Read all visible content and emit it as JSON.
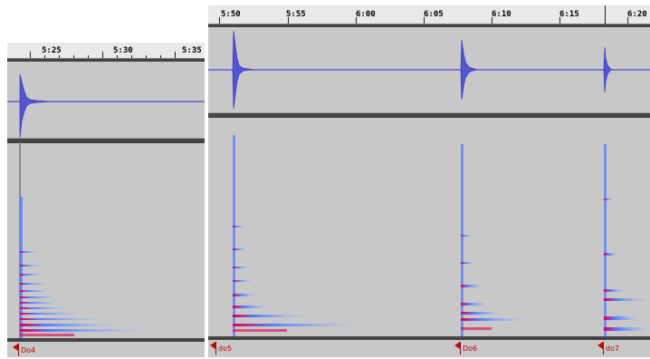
{
  "left_panel": {
    "ruler_labels": [
      "5:25",
      "5:30",
      "5:35"
    ],
    "marker_label": "Do4"
  },
  "right_panel": {
    "ruler_labels": [
      "5:50",
      "5:55",
      "6:00",
      "6:05",
      "6:10",
      "6:15",
      "6:20"
    ],
    "marker_labels": [
      "do5",
      "Do6",
      "do7"
    ]
  },
  "colors": {
    "waveform": "#2828c8",
    "spectrogram_low": "#8cb4ff",
    "spectrogram_high": "#e0004a",
    "marker": "#d40000",
    "track_bg": "#c8c8c8"
  }
}
